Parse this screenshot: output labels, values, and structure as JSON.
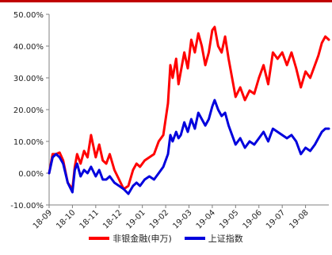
{
  "colors": {
    "top_rule": "#c00000",
    "series_1": "#ff0000",
    "series_2": "#0000dd",
    "axis": "#808080",
    "text": "#222222"
  },
  "legend": {
    "series_1_label": "非银金融(申万)",
    "series_2_label": "上证指数"
  },
  "chart_data": {
    "type": "line",
    "title": "",
    "xlabel": "",
    "ylabel": "",
    "ylim": [
      -10,
      50
    ],
    "y_ticks": [
      -10,
      0,
      10,
      20,
      30,
      40,
      50
    ],
    "y_tick_labels": [
      "-10.00%",
      "0.00%",
      "10.00%",
      "20.00%",
      "30.00%",
      "40.00%",
      "50.00%"
    ],
    "x_tick_labels": [
      "18-09",
      "18-10",
      "18-11",
      "18-12",
      "19-01",
      "19-02",
      "19-03",
      "19-04",
      "19-05",
      "19-06",
      "19-07",
      "19-08"
    ],
    "grid": false,
    "legend_position": "bottom",
    "x_unit": "month index (0 = 2018-09)",
    "series": [
      {
        "name": "非银金融(申万)",
        "x": [
          0,
          0.15,
          0.3,
          0.45,
          0.6,
          0.8,
          1.0,
          1.1,
          1.2,
          1.35,
          1.5,
          1.65,
          1.8,
          2.0,
          2.15,
          2.3,
          2.45,
          2.6,
          2.8,
          3.0,
          3.2,
          3.4,
          3.6,
          3.75,
          3.9,
          4.1,
          4.3,
          4.5,
          4.7,
          4.9,
          5.1,
          5.2,
          5.3,
          5.45,
          5.55,
          5.65,
          5.8,
          5.95,
          6.1,
          6.25,
          6.4,
          6.55,
          6.7,
          6.85,
          7.0,
          7.1,
          7.25,
          7.4,
          7.55,
          7.7,
          7.85,
          8.0,
          8.2,
          8.4,
          8.6,
          8.8,
          9.0,
          9.2,
          9.4,
          9.6,
          9.8,
          10.0,
          10.2,
          10.4,
          10.6,
          10.8,
          11.0,
          11.2,
          11.4,
          11.55,
          11.7,
          11.85,
          12.0
        ],
        "values": [
          0,
          6,
          6,
          6.5,
          4,
          -3,
          -5,
          2,
          6,
          3,
          7,
          5,
          12,
          5,
          9,
          4,
          3,
          6,
          1,
          -2,
          -5,
          -4,
          1,
          3,
          2,
          4,
          5,
          6,
          10,
          12,
          22,
          34,
          30,
          36,
          28,
          32,
          38,
          33,
          42,
          38,
          44,
          40,
          34,
          38,
          45,
          46,
          40,
          38,
          43,
          36,
          30,
          24,
          27,
          23,
          26,
          25,
          30,
          34,
          28,
          38,
          36,
          38,
          34,
          38,
          33,
          27,
          32,
          30,
          34,
          37,
          41,
          43,
          42
        ]
      },
      {
        "name": "上证指数",
        "x": [
          0,
          0.15,
          0.3,
          0.45,
          0.6,
          0.8,
          1.0,
          1.1,
          1.2,
          1.35,
          1.5,
          1.65,
          1.8,
          2.0,
          2.15,
          2.3,
          2.45,
          2.6,
          2.8,
          3.0,
          3.2,
          3.4,
          3.6,
          3.75,
          3.9,
          4.1,
          4.3,
          4.5,
          4.7,
          4.9,
          5.1,
          5.2,
          5.3,
          5.45,
          5.55,
          5.65,
          5.8,
          5.95,
          6.1,
          6.25,
          6.4,
          6.55,
          6.7,
          6.85,
          7.0,
          7.1,
          7.25,
          7.4,
          7.55,
          7.7,
          7.85,
          8.0,
          8.2,
          8.4,
          8.6,
          8.8,
          9.0,
          9.2,
          9.4,
          9.6,
          9.8,
          10.0,
          10.2,
          10.4,
          10.6,
          10.8,
          11.0,
          11.2,
          11.4,
          11.55,
          11.7,
          11.85,
          12.0
        ],
        "values": [
          0,
          5,
          6,
          5,
          3,
          -3,
          -6,
          1,
          3,
          -1,
          1,
          0,
          2,
          -1,
          1,
          -2,
          -2,
          -1,
          -3,
          -4,
          -5,
          -6.5,
          -4,
          -3,
          -4,
          -2,
          -1,
          -2,
          0,
          2,
          6,
          12,
          10,
          13,
          11,
          12,
          16,
          13,
          17,
          14,
          19,
          17,
          15,
          17,
          21,
          23,
          20,
          18,
          19,
          15,
          12,
          9,
          11,
          8,
          10,
          9,
          11,
          13,
          10,
          14,
          13,
          12,
          11,
          12,
          10,
          6,
          8,
          7,
          9,
          11,
          13,
          14,
          14
        ]
      }
    ]
  }
}
